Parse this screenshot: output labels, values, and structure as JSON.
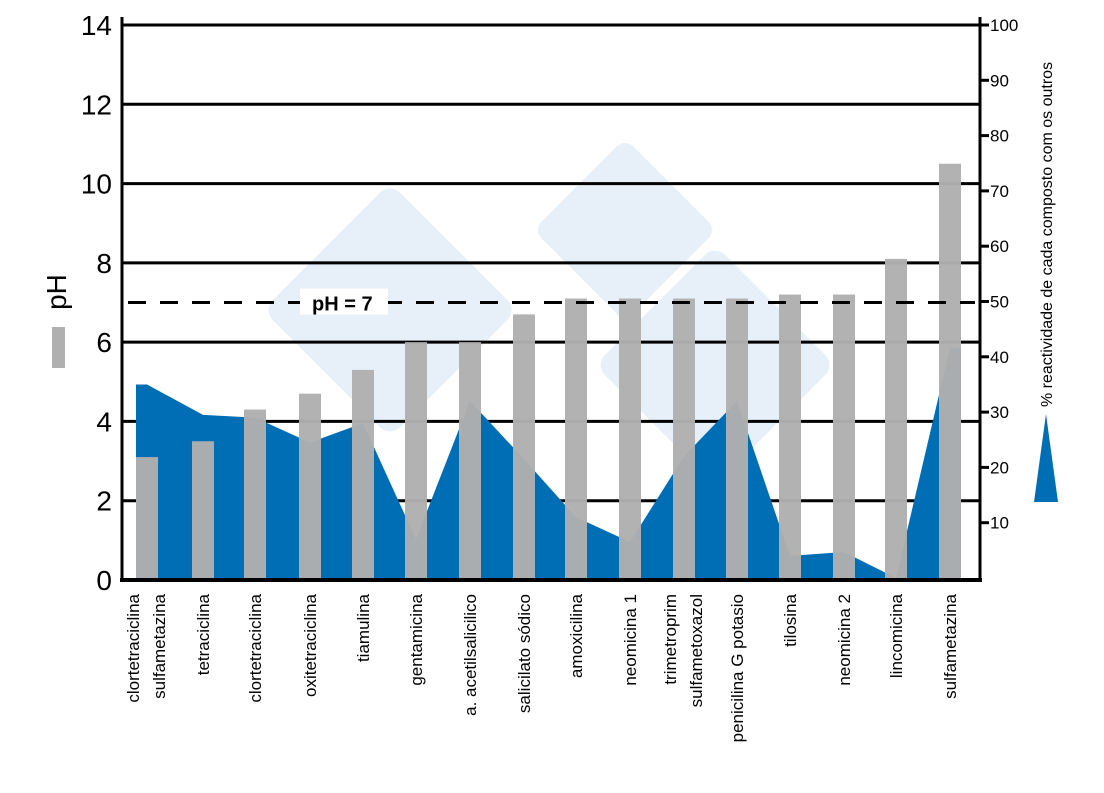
{
  "chart_data": {
    "type": "bar",
    "categories": [
      [
        "clortetraciclina",
        "sulfametazina"
      ],
      [
        "tetraciclina"
      ],
      [
        "clortetraciclina"
      ],
      [
        "oxitetraciclina"
      ],
      [
        "tiamulina"
      ],
      [
        "gentamicina"
      ],
      [
        "a. acetilsalicilico"
      ],
      [
        "salicilato sódico"
      ],
      [
        "amoxicilina"
      ],
      [
        "neomicina 1"
      ],
      [
        "trimetroprim",
        "sulfametoxazol"
      ],
      [
        "penicilina G potasio"
      ],
      [
        "tilosina"
      ],
      [
        "neomicina 2"
      ],
      [
        "lincomicina"
      ],
      [
        "sulfametazina"
      ]
    ],
    "series": [
      {
        "name": "pH",
        "type": "bar",
        "axis": "left",
        "color": "#b0b0b0",
        "values": [
          3.1,
          3.5,
          4.3,
          4.7,
          5.3,
          6.0,
          6.0,
          6.7,
          7.1,
          7.1,
          7.1,
          7.1,
          7.2,
          7.2,
          8.1,
          10.5
        ]
      },
      {
        "name": "% reactividade de cada composto com os outros",
        "type": "area",
        "axis": "right",
        "color": "#006eb5",
        "values": [
          35,
          29.5,
          29,
          24.5,
          28,
          7,
          32,
          21.5,
          11,
          6.5,
          22,
          32,
          4,
          4.7,
          0,
          41.6
        ]
      }
    ],
    "left_axis": {
      "label": "pH",
      "ticks": [
        "0",
        "2",
        "4",
        "6",
        "8",
        "10",
        "12",
        "14"
      ],
      "range": [
        0,
        14
      ]
    },
    "right_axis": {
      "label": "% reactividade de cada composto com os outros",
      "ticks": [
        "10",
        "20",
        "30",
        "40",
        "50",
        "60",
        "70",
        "80",
        "90",
        "100"
      ],
      "range": [
        0,
        100
      ]
    },
    "reference_line": {
      "value": 7,
      "label": "pH = 7",
      "style": "dashed"
    },
    "grid": true,
    "legend_placement": "sides"
  }
}
